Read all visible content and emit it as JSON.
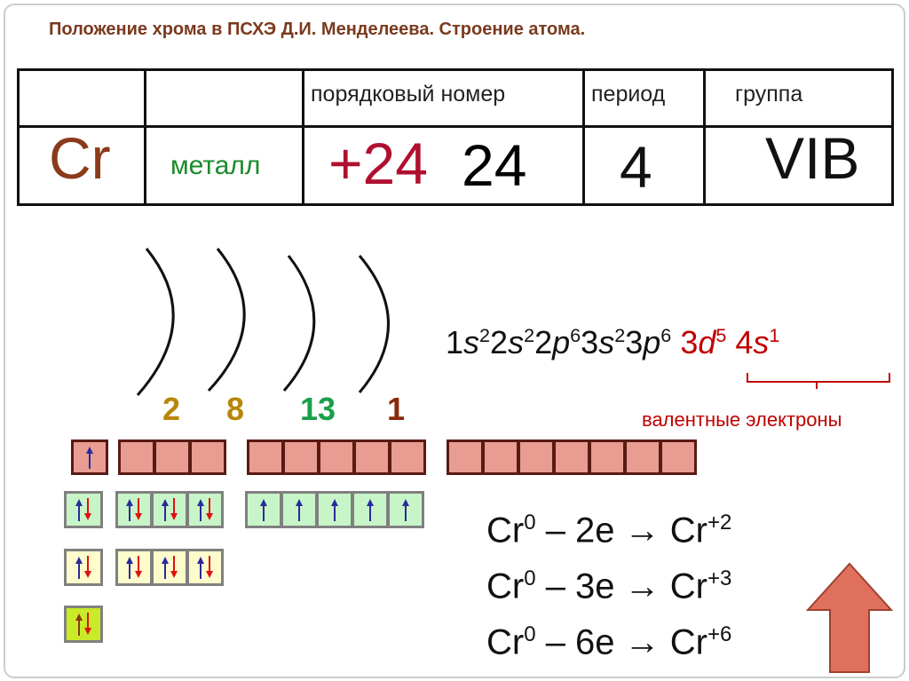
{
  "title": "Положение хрома в ПСХЭ Д.И. Менделеева. Строение атома.",
  "table": {
    "headers": [
      "",
      "",
      "порядковый номер",
      "период",
      "группа"
    ],
    "symbol": "Cr",
    "type": "металл",
    "number_back": "24",
    "number": "+24",
    "period": "4",
    "group": "VIB"
  },
  "shells": [
    "2",
    "8",
    "13",
    "1"
  ],
  "config": {
    "core": [
      [
        "1",
        "s",
        "2"
      ],
      [
        "2",
        "s",
        "2"
      ],
      [
        "2",
        "p",
        "6"
      ],
      [
        "3",
        "s",
        "2"
      ],
      [
        "3",
        "p",
        "6"
      ]
    ],
    "valence": [
      [
        "3",
        "d",
        "5"
      ],
      [
        "4",
        "s",
        "1"
      ]
    ],
    "label": "валентные электроны"
  },
  "orbitals": {
    "row1": [
      [
        "up"
      ],
      [
        "",
        "",
        ""
      ],
      [
        "",
        "",
        "",
        "",
        ""
      ],
      [
        "",
        "",
        "",
        "",
        "",
        "",
        ""
      ]
    ],
    "row2": [
      [
        "pair"
      ],
      [
        "pair",
        "pair",
        "pair"
      ],
      [
        "up",
        "up",
        "up",
        "up",
        "up"
      ]
    ],
    "row3": [
      [
        "pair"
      ],
      [
        "pair",
        "pair",
        "pair"
      ]
    ],
    "row4": [
      [
        "pair"
      ]
    ]
  },
  "equations": [
    {
      "left": "Cr",
      "lsup": "0",
      "mid": " – 2e → ",
      "right": "Cr",
      "rsup": "+2"
    },
    {
      "left": "Cr",
      "lsup": "0",
      "mid": " – 3e → ",
      "right": "Cr",
      "rsup": "+3"
    },
    {
      "left": "Cr",
      "lsup": "0",
      "mid": " – 6e → ",
      "right": "Cr",
      "rsup": "+6"
    }
  ],
  "colors": {
    "title": "#7a3a1e",
    "symbol": "#8b3a1a",
    "metal": "#1a8a2a",
    "charge": "#b01030",
    "valence": "#c00000",
    "arrow": "#e0705e"
  }
}
